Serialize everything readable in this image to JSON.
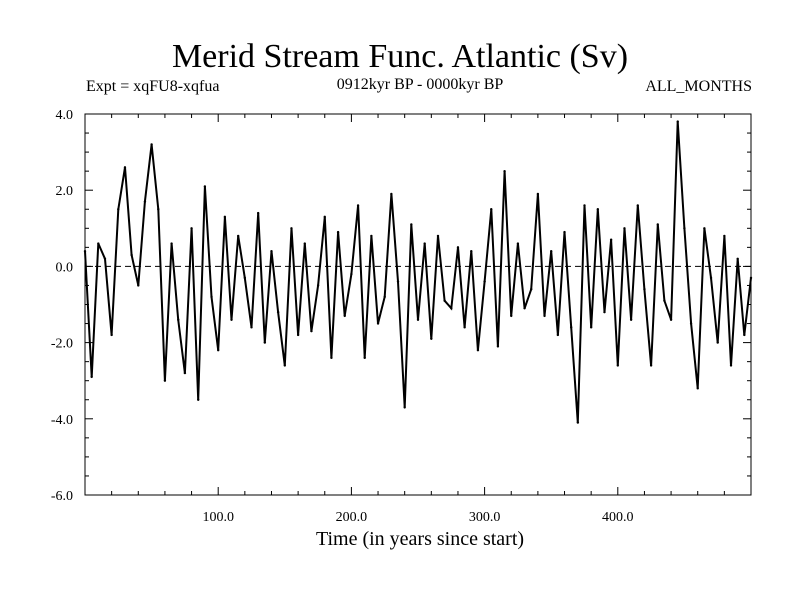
{
  "chart_data": {
    "type": "line",
    "title": "Merid Stream Func. Atlantic (Sv)",
    "subtitle_left": "Expt = xqFU8-xqfua",
    "subtitle_center": "0912kyr BP - 0000kyr BP",
    "subtitle_right": "ALL_MONTHS",
    "xlabel": "Time (in years since start)",
    "ylabel": "",
    "xlim": [
      0,
      500
    ],
    "ylim": [
      -6.0,
      4.0
    ],
    "xticks": [
      100,
      200,
      300,
      400
    ],
    "xtick_labels": [
      "100.0",
      "200.0",
      "300.0",
      "400.0"
    ],
    "yticks": [
      4.0,
      2.0,
      0.0,
      -2.0,
      -4.0,
      -6.0
    ],
    "ytick_labels": [
      "4.0",
      "2.0",
      "0.0",
      "-2.0",
      "-4.0",
      "-6.0"
    ],
    "reference_line": 0.0,
    "series": [
      {
        "name": "Merid Stream Func. Atlantic",
        "x": [
          0,
          5,
          10,
          15,
          20,
          25,
          30,
          35,
          40,
          45,
          50,
          55,
          60,
          65,
          70,
          75,
          80,
          85,
          90,
          95,
          100,
          105,
          110,
          115,
          120,
          125,
          130,
          135,
          140,
          145,
          150,
          155,
          160,
          165,
          170,
          175,
          180,
          185,
          190,
          195,
          200,
          205,
          210,
          215,
          220,
          225,
          230,
          235,
          240,
          245,
          250,
          255,
          260,
          265,
          270,
          275,
          280,
          285,
          290,
          295,
          300,
          305,
          310,
          315,
          320,
          325,
          330,
          335,
          340,
          345,
          350,
          355,
          360,
          365,
          370,
          375,
          380,
          385,
          390,
          395,
          400,
          405,
          410,
          415,
          420,
          425,
          430,
          435,
          440,
          445,
          450,
          455,
          460,
          465,
          470,
          475,
          480,
          485,
          490,
          495,
          500
        ],
        "values": [
          0.4,
          -2.9,
          0.6,
          0.2,
          -1.8,
          1.5,
          2.6,
          0.3,
          -0.5,
          1.7,
          3.2,
          1.5,
          -3.0,
          0.6,
          -1.4,
          -2.8,
          1.0,
          -3.5,
          2.1,
          -0.8,
          -2.2,
          1.3,
          -1.4,
          0.8,
          -0.3,
          -1.6,
          1.4,
          -2.0,
          0.4,
          -1.2,
          -2.6,
          1.0,
          -1.8,
          0.6,
          -1.7,
          -0.5,
          1.3,
          -2.4,
          0.9,
          -1.3,
          -0.2,
          1.6,
          -2.4,
          0.8,
          -1.5,
          -0.8,
          1.9,
          -0.4,
          -3.7,
          1.1,
          -1.4,
          0.6,
          -1.9,
          0.8,
          -0.9,
          -1.1,
          0.5,
          -1.6,
          0.4,
          -2.2,
          -0.4,
          1.5,
          -2.1,
          2.5,
          -1.3,
          0.6,
          -1.1,
          -0.6,
          1.9,
          -1.3,
          0.4,
          -1.8,
          0.9,
          -1.6,
          -4.1,
          1.6,
          -1.6,
          1.5,
          -1.2,
          0.7,
          -2.6,
          1.0,
          -1.4,
          1.6,
          -0.6,
          -2.6,
          1.1,
          -0.9,
          -1.4,
          3.8,
          1.0,
          -1.5,
          -3.2,
          1.0,
          -0.3,
          -2.0,
          0.8,
          -2.6,
          0.2,
          -1.8,
          -0.3
        ]
      }
    ]
  }
}
